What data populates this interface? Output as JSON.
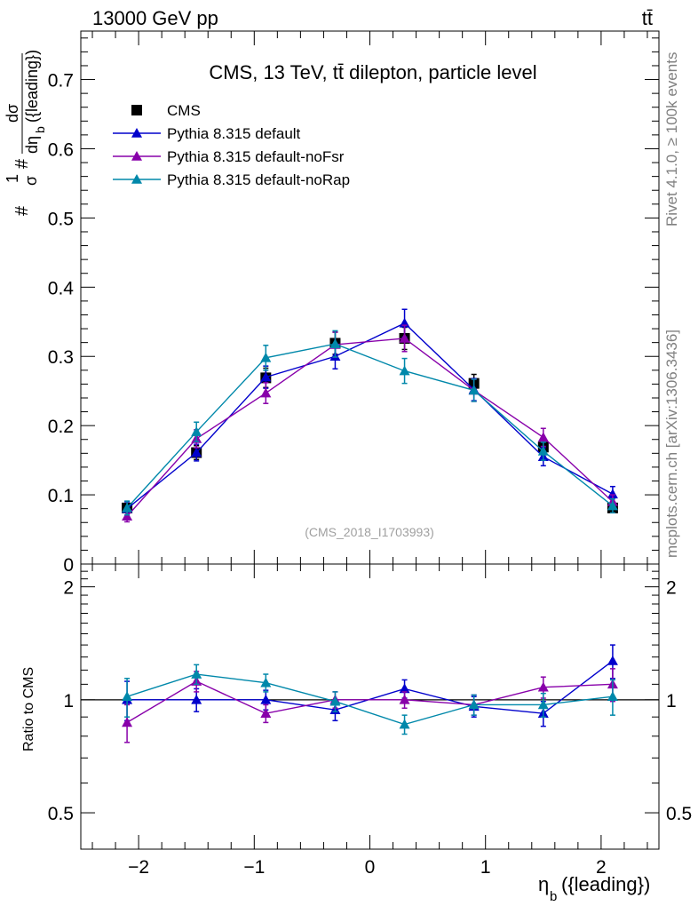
{
  "header": {
    "left": "13000 GeV pp",
    "right": "tt̄"
  },
  "side_texts": {
    "rivet": "Rivet 4.1.0, ≥ 100k events",
    "mcplots": "mcplots.cern.ch [arXiv:1306.3436]"
  },
  "chart_data": [
    {
      "type": "scatter",
      "panel": "main",
      "title": "CMS, 13 TeV, tt̄ dilepton, particle level",
      "watermark": "(CMS_2018_I1703993)",
      "xlabel": "η_b ({leading})",
      "ylabel_parts": {
        "prefix": "#",
        "frac_num": "1",
        "frac_den": "σ",
        "mid": "#",
        "d_num": "dσ",
        "d_den": "dη",
        "d_den_sub": "b",
        "d_den_tail": "({leading})"
      },
      "x": [
        -2.1,
        -1.5,
        -0.9,
        -0.3,
        0.3,
        0.9,
        1.5,
        2.1
      ],
      "xlim": [
        -2.5,
        2.5
      ],
      "ylim": [
        0,
        0.77
      ],
      "yticks": [
        0,
        0.1,
        0.2,
        0.3,
        0.4,
        0.5,
        0.6,
        0.7
      ],
      "ytick_labels": [
        "0",
        "0.1",
        "0.2",
        "0.3",
        "0.4",
        "0.5",
        "0.6",
        "0.7"
      ],
      "series": [
        {
          "name": "CMS",
          "marker": "square",
          "color": "#000000",
          "line": false,
          "values": [
            0.081,
            0.161,
            0.269,
            0.319,
            0.326,
            0.261,
            0.169,
            0.081
          ],
          "errors": [
            0.006,
            0.01,
            0.014,
            0.016,
            0.016,
            0.013,
            0.01,
            0.006
          ]
        },
        {
          "name": "Pythia 8.315 default",
          "marker": "triangle",
          "color": "#0000cc",
          "line": true,
          "values": [
            0.08,
            0.161,
            0.27,
            0.3,
            0.348,
            0.252,
            0.155,
            0.101
          ],
          "errors": [
            0.01,
            0.012,
            0.016,
            0.018,
            0.02,
            0.016,
            0.013,
            0.011
          ]
        },
        {
          "name": "Pythia 8.315 default-noFsr",
          "marker": "triangle",
          "color": "#8800aa",
          "line": true,
          "values": [
            0.069,
            0.181,
            0.247,
            0.317,
            0.326,
            0.251,
            0.183,
            0.09
          ],
          "errors": [
            0.008,
            0.013,
            0.015,
            0.018,
            0.019,
            0.016,
            0.013,
            0.01
          ]
        },
        {
          "name": "Pythia 8.315 default-noRap",
          "marker": "triangle",
          "color": "#0088aa",
          "line": true,
          "values": [
            0.081,
            0.191,
            0.298,
            0.318,
            0.279,
            0.251,
            0.163,
            0.084
          ],
          "errors": [
            0.01,
            0.014,
            0.018,
            0.019,
            0.018,
            0.016,
            0.013,
            0.01
          ]
        }
      ]
    },
    {
      "type": "scatter",
      "panel": "ratio",
      "ylabel": "Ratio to CMS",
      "x": [
        -2.1,
        -1.5,
        -0.9,
        -0.3,
        0.3,
        0.9,
        1.5,
        2.1
      ],
      "xlim": [
        -2.5,
        2.5
      ],
      "ylim": [
        0.4,
        2.3
      ],
      "log_y": true,
      "reference": 1,
      "yticks": [
        0.5,
        1,
        2
      ],
      "ytick_labels": [
        "0.5",
        "1",
        "2"
      ],
      "xticks": [
        -2,
        -1,
        0,
        1,
        2
      ],
      "xtick_labels": [
        "−2",
        "−1",
        "0",
        "1",
        "2"
      ],
      "series": [
        {
          "name": "Pythia 8.315 default",
          "color": "#0000cc",
          "values": [
            1.0,
            1.0,
            1.0,
            0.94,
            1.07,
            0.96,
            0.92,
            1.27
          ],
          "errors": [
            0.12,
            0.07,
            0.06,
            0.06,
            0.06,
            0.06,
            0.07,
            0.13
          ]
        },
        {
          "name": "Pythia 8.315 default-noFsr",
          "color": "#8800aa",
          "values": [
            0.87,
            1.12,
            0.92,
            1.0,
            1.0,
            0.97,
            1.08,
            1.1
          ],
          "errors": [
            0.1,
            0.07,
            0.05,
            0.05,
            0.05,
            0.06,
            0.07,
            0.11
          ]
        },
        {
          "name": "Pythia 8.315 default-noRap",
          "color": "#0088aa",
          "values": [
            1.02,
            1.17,
            1.11,
            0.99,
            0.86,
            0.97,
            0.97,
            1.02
          ],
          "errors": [
            0.12,
            0.07,
            0.06,
            0.06,
            0.05,
            0.06,
            0.07,
            0.11
          ]
        }
      ]
    }
  ]
}
